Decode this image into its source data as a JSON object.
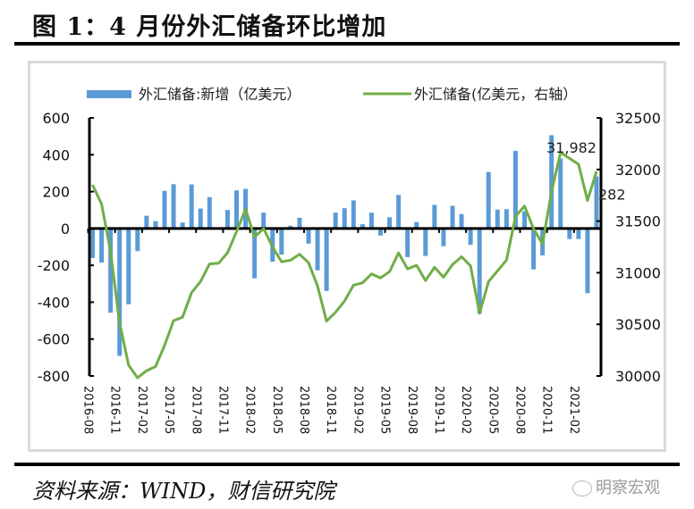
{
  "figure": {
    "title": "图 1：4 月份外汇储备环比增加",
    "source": "资料来源：WIND，财信研究院",
    "watermark": "明察宏观"
  },
  "colors": {
    "bar": "#5b9bd5",
    "line": "#70ad47",
    "axis": "#000000",
    "frame": "#d9d9d9"
  },
  "chart_data": {
    "type": "bar+line",
    "title": "4 月份外汇储备环比增加",
    "legend_position": "top",
    "grid": false,
    "months": [
      "2016-08",
      "2016-09",
      "2016-10",
      "2016-11",
      "2016-12",
      "2017-01",
      "2017-02",
      "2017-03",
      "2017-04",
      "2017-05",
      "2017-06",
      "2017-07",
      "2017-08",
      "2017-09",
      "2017-10",
      "2017-11",
      "2017-12",
      "2018-01",
      "2018-02",
      "2018-03",
      "2018-04",
      "2018-05",
      "2018-06",
      "2018-07",
      "2018-08",
      "2018-09",
      "2018-10",
      "2018-11",
      "2018-12",
      "2019-01",
      "2019-02",
      "2019-03",
      "2019-04",
      "2019-05",
      "2019-06",
      "2019-07",
      "2019-08",
      "2019-09",
      "2019-10",
      "2019-11",
      "2019-12",
      "2020-01",
      "2020-02",
      "2020-03",
      "2020-04",
      "2020-05",
      "2020-06",
      "2020-07",
      "2020-08",
      "2020-09",
      "2020-10",
      "2020-11",
      "2020-12",
      "2021-01",
      "2021-02",
      "2021-03",
      "2021-04"
    ],
    "x_tick_labels": [
      "2016-08",
      "2016-11",
      "2017-02",
      "2017-05",
      "2017-08",
      "2017-11",
      "2018-02",
      "2018-05",
      "2018-08",
      "2018-11",
      "2019-02",
      "2019-05",
      "2019-08",
      "2019-11",
      "2020-02",
      "2020-05",
      "2020-08",
      "2020-11",
      "2021-02"
    ],
    "series": [
      {
        "name": "外汇储备:新增（亿美元）",
        "type": "bar",
        "axis": "left",
        "values": [
          -160,
          -185,
          -457,
          -691,
          -411,
          -123,
          69,
          40,
          204,
          240,
          32,
          239,
          108,
          170,
          6,
          100,
          207,
          215,
          -270,
          86,
          -180,
          -142,
          15,
          58,
          -82,
          -227,
          -339,
          86,
          110,
          152,
          23,
          86,
          -38,
          61,
          182,
          -155,
          35,
          -149,
          128,
          -96,
          123,
          78,
          -89,
          -461,
          306,
          102,
          105,
          421,
          93,
          -222,
          -146,
          506,
          380,
          -57,
          -57,
          -351,
          282
        ]
      },
      {
        "name": "外汇储备(亿美元，右轴）",
        "type": "line",
        "axis": "right",
        "values": [
          31852,
          31664,
          31207,
          30516,
          30105,
          29982,
          30051,
          30091,
          30295,
          30536,
          30568,
          30807,
          30915,
          31085,
          31092,
          31193,
          31399,
          31615,
          31345,
          31428,
          31249,
          31106,
          31121,
          31179,
          31097,
          30870,
          30531,
          30617,
          30727,
          30879,
          30902,
          30988,
          30950,
          31010,
          31192,
          31037,
          31072,
          30924,
          31052,
          30956,
          31079,
          31155,
          31067,
          30606,
          30915,
          31017,
          31123,
          31544,
          31646,
          31426,
          31280,
          31785,
          32165,
          32107,
          32050,
          31700,
          31982
        ]
      }
    ],
    "y_left": {
      "ticks": [
        "600",
        "400",
        "200",
        "0",
        "-200",
        "-400",
        "-600",
        "-800"
      ],
      "min": -800,
      "max": 600
    },
    "y_right": {
      "ticks": [
        "32500",
        "32000",
        "31500",
        "31000",
        "30500",
        "30000"
      ],
      "min": 30000,
      "max": 32500
    },
    "annotations": [
      {
        "text": "31,982",
        "series": "line",
        "month": "2021-04"
      },
      {
        "text": "282",
        "series": "bar",
        "month": "2021-04"
      }
    ]
  }
}
